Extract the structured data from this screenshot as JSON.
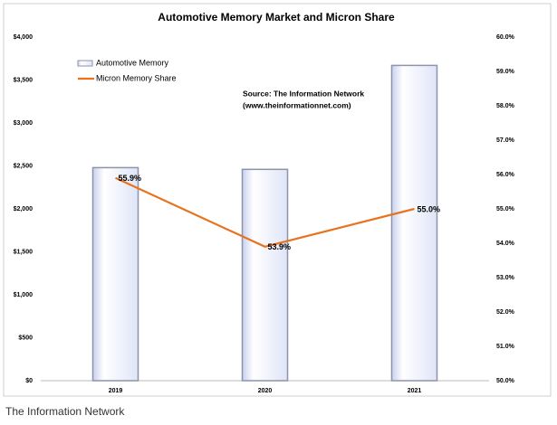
{
  "chart_data": {
    "type": "bar",
    "title": "Automotive Memory Market and Micron Share",
    "categories": [
      "2019",
      "2020",
      "2021"
    ],
    "series": [
      {
        "name": "Automotive Memory",
        "type": "bar",
        "color": "#e6ebfa",
        "values": [
          2480,
          2460,
          3670
        ]
      },
      {
        "name": "Micron Memory Share",
        "type": "line",
        "color": "#e8731e",
        "axis": "y2",
        "values": [
          55.9,
          53.9,
          55.0
        ],
        "value_labels": [
          "55.9%",
          "53.9%",
          "55.0%"
        ]
      }
    ],
    "ylim": [
      0,
      4000
    ],
    "yticks": [
      {
        "value": 0,
        "label": "$0"
      },
      {
        "value": 500,
        "label": "$500"
      },
      {
        "value": 1000,
        "label": "$1,000"
      },
      {
        "value": 1500,
        "label": "$1,500"
      },
      {
        "value": 2000,
        "label": "$2,000"
      },
      {
        "value": 2500,
        "label": "$2,500"
      },
      {
        "value": 3000,
        "label": "$3,000"
      },
      {
        "value": 3500,
        "label": "$3,500"
      },
      {
        "value": 4000,
        "label": "$4,000"
      }
    ],
    "y2lim": [
      50,
      60
    ],
    "y2ticks": [
      {
        "value": 50,
        "label": "50.0%"
      },
      {
        "value": 51,
        "label": "51.0%"
      },
      {
        "value": 52,
        "label": "52.0%"
      },
      {
        "value": 53,
        "label": "53.0%"
      },
      {
        "value": 54,
        "label": "54.0%"
      },
      {
        "value": 55,
        "label": "55.0%"
      },
      {
        "value": 56,
        "label": "56.0%"
      },
      {
        "value": 57,
        "label": "57.0%"
      },
      {
        "value": 58,
        "label": "58.0%"
      },
      {
        "value": 59,
        "label": "59.0%"
      },
      {
        "value": 60,
        "label": "60.0%"
      }
    ],
    "grid": false,
    "legend": "upper left",
    "annotations": [
      "Source: The Information Network",
      "(www.theinformationnet.com)"
    ]
  },
  "caption": "The Information Network"
}
